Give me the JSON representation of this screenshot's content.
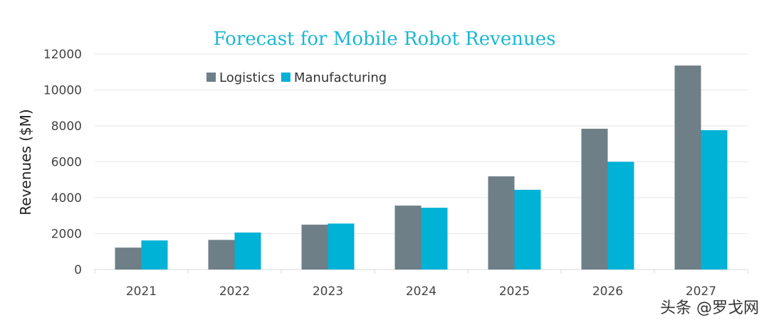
{
  "chart_data": {
    "type": "bar",
    "title": "Forecast for Mobile Robot Revenues",
    "xlabel": "",
    "ylabel": "Revenues ($M)",
    "ylim": [
      0,
      12000
    ],
    "yticks": [
      0,
      2000,
      4000,
      6000,
      8000,
      10000,
      12000
    ],
    "grid": true,
    "legend_position": "top-left",
    "categories": [
      "2021",
      "2022",
      "2023",
      "2024",
      "2025",
      "2026",
      "2027"
    ],
    "series": [
      {
        "name": "Logistics",
        "color": "#6e7f87",
        "values": [
          1220,
          1650,
          2500,
          3560,
          5190,
          7840,
          11360
        ]
      },
      {
        "name": "Manufacturing",
        "color": "#00b2d6",
        "values": [
          1620,
          2060,
          2560,
          3440,
          4440,
          6000,
          7760
        ]
      }
    ]
  },
  "watermark": "头条 @罗戈网"
}
